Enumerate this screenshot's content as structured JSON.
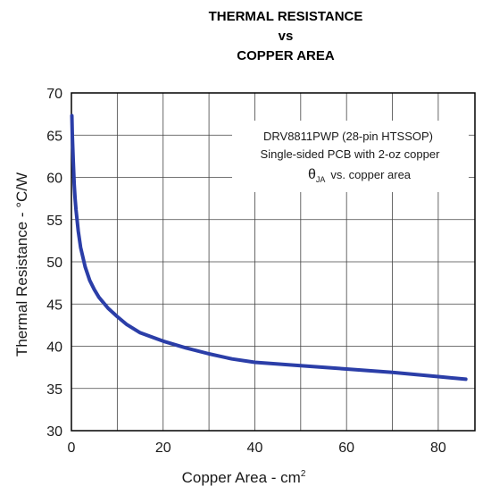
{
  "chart_data": {
    "type": "line",
    "title": [
      "THERMAL RESISTANCE",
      "vs",
      "COPPER AREA"
    ],
    "xlabel": "Copper Area - cm",
    "xlabel_sup": "2",
    "ylabel": "Thermal Resistance - °C/W",
    "xlim": [
      0,
      88
    ],
    "ylim": [
      30,
      70
    ],
    "xticks": [
      0,
      20,
      40,
      60,
      80
    ],
    "yticks": [
      30,
      35,
      40,
      45,
      50,
      55,
      60,
      65,
      70
    ],
    "grid": true,
    "line_color": "#2b3ea8",
    "annotation": {
      "line1": "DRV8811PWP (28-pin HTSSOP)",
      "line2": "Single-sided PCB with 2-oz copper",
      "line3_symbol": "θ",
      "line3_sub": "JA",
      "line3_rest": "vs. copper area"
    },
    "series": [
      {
        "x": [
          0.1,
          0.2,
          0.4,
          0.6,
          0.8,
          1,
          1.5,
          2,
          3,
          4,
          5,
          6,
          8,
          10,
          12,
          15,
          20,
          25,
          30,
          35,
          40,
          50,
          60,
          70,
          80,
          86
        ],
        "y": [
          67.3,
          65,
          61.8,
          59.2,
          57.5,
          56.2,
          53.6,
          51.7,
          49.4,
          47.8,
          46.7,
          45.8,
          44.5,
          43.5,
          42.6,
          41.6,
          40.6,
          39.8,
          39.1,
          38.5,
          38.1,
          37.7,
          37.3,
          36.9,
          36.4,
          36.1
        ]
      }
    ]
  }
}
